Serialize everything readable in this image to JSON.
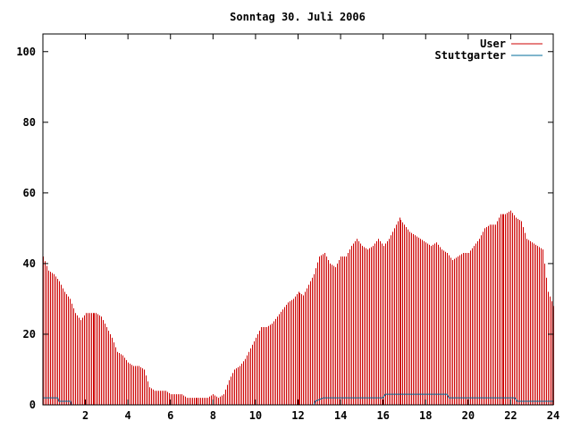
{
  "chart_data": {
    "type": "bar",
    "title": "Sonntag 30. Juli 2006",
    "xlabel": "",
    "ylabel": "",
    "xlim": [
      0,
      24
    ],
    "ylim": [
      0,
      105
    ],
    "x_ticks": [
      2,
      4,
      6,
      8,
      10,
      12,
      14,
      16,
      18,
      20,
      22,
      24
    ],
    "y_ticks": [
      0,
      20,
      40,
      60,
      80,
      100
    ],
    "legend_position": "top-right",
    "grid": false,
    "series": [
      {
        "name": "User",
        "style": "impulses",
        "color": "#cc0000",
        "points": [
          [
            0.0,
            42
          ],
          [
            0.25,
            38
          ],
          [
            0.5,
            37
          ],
          [
            0.75,
            35
          ],
          [
            1.0,
            32
          ],
          [
            1.25,
            30
          ],
          [
            1.5,
            26
          ],
          [
            1.75,
            24
          ],
          [
            2.0,
            26
          ],
          [
            2.25,
            26
          ],
          [
            2.5,
            26
          ],
          [
            2.75,
            25
          ],
          [
            3.0,
            22
          ],
          [
            3.25,
            19
          ],
          [
            3.5,
            15
          ],
          [
            3.75,
            14
          ],
          [
            4.0,
            12
          ],
          [
            4.25,
            11
          ],
          [
            4.5,
            11
          ],
          [
            4.75,
            10
          ],
          [
            5.0,
            5
          ],
          [
            5.25,
            4
          ],
          [
            5.5,
            4
          ],
          [
            5.75,
            4
          ],
          [
            6.0,
            3
          ],
          [
            6.25,
            3
          ],
          [
            6.5,
            3
          ],
          [
            6.75,
            2
          ],
          [
            7.0,
            2
          ],
          [
            7.25,
            2
          ],
          [
            7.5,
            2
          ],
          [
            7.75,
            2
          ],
          [
            8.0,
            3
          ],
          [
            8.25,
            2
          ],
          [
            8.5,
            3
          ],
          [
            8.75,
            7
          ],
          [
            9.0,
            10
          ],
          [
            9.25,
            11
          ],
          [
            9.5,
            13
          ],
          [
            9.75,
            16
          ],
          [
            10.0,
            19
          ],
          [
            10.25,
            22
          ],
          [
            10.5,
            22
          ],
          [
            10.75,
            23
          ],
          [
            11.0,
            25
          ],
          [
            11.25,
            27
          ],
          [
            11.5,
            29
          ],
          [
            11.75,
            30
          ],
          [
            12.0,
            32
          ],
          [
            12.25,
            31
          ],
          [
            12.5,
            34
          ],
          [
            12.75,
            37
          ],
          [
            13.0,
            42
          ],
          [
            13.25,
            43
          ],
          [
            13.5,
            40
          ],
          [
            13.75,
            39
          ],
          [
            14.0,
            42
          ],
          [
            14.25,
            42
          ],
          [
            14.5,
            45
          ],
          [
            14.75,
            47
          ],
          [
            15.0,
            45
          ],
          [
            15.25,
            44
          ],
          [
            15.5,
            45
          ],
          [
            15.75,
            47
          ],
          [
            16.0,
            45
          ],
          [
            16.25,
            47
          ],
          [
            16.5,
            50
          ],
          [
            16.75,
            53
          ],
          [
            17.0,
            51
          ],
          [
            17.25,
            49
          ],
          [
            17.5,
            48
          ],
          [
            17.75,
            47
          ],
          [
            18.0,
            46
          ],
          [
            18.25,
            45
          ],
          [
            18.5,
            46
          ],
          [
            18.75,
            44
          ],
          [
            19.0,
            43
          ],
          [
            19.25,
            41
          ],
          [
            19.5,
            42
          ],
          [
            19.75,
            43
          ],
          [
            20.0,
            43
          ],
          [
            20.25,
            45
          ],
          [
            20.5,
            47
          ],
          [
            20.75,
            50
          ],
          [
            21.0,
            51
          ],
          [
            21.25,
            51
          ],
          [
            21.5,
            54
          ],
          [
            21.75,
            54
          ],
          [
            22.0,
            55
          ],
          [
            22.25,
            53
          ],
          [
            22.5,
            52
          ],
          [
            22.75,
            47
          ],
          [
            23.0,
            46
          ],
          [
            23.25,
            45
          ],
          [
            23.5,
            44
          ],
          [
            23.75,
            32
          ],
          [
            24.0,
            28
          ]
        ]
      },
      {
        "name": "Stuttgarter",
        "style": "lines",
        "color": "#006b99",
        "points": [
          [
            0.0,
            2
          ],
          [
            0.7,
            2
          ],
          [
            0.75,
            1
          ],
          [
            1.3,
            1
          ],
          [
            1.35,
            0
          ],
          [
            12.75,
            0
          ],
          [
            12.8,
            1
          ],
          [
            13.2,
            2
          ],
          [
            16.0,
            2
          ],
          [
            16.1,
            3
          ],
          [
            19.0,
            3
          ],
          [
            19.1,
            2
          ],
          [
            22.2,
            2
          ],
          [
            22.3,
            1
          ],
          [
            24.0,
            1
          ]
        ]
      }
    ]
  }
}
